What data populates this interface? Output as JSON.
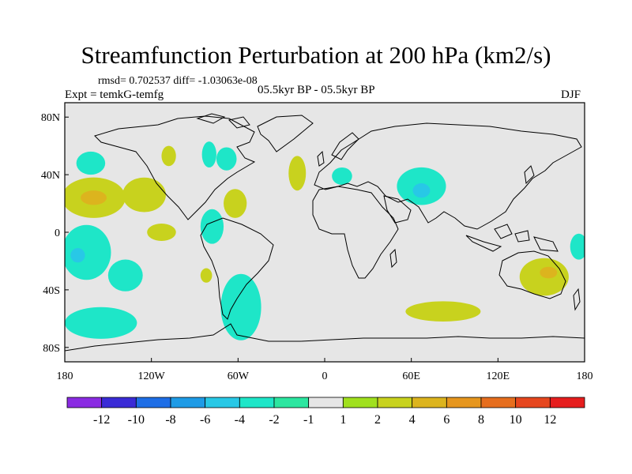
{
  "figure": {
    "title": "Streamfunction Perturbation at 200 hPa (km2/s)",
    "rmsd_line": "rmsd= 0.702537 diff= -1.03063e-08",
    "experiment": "Expt = temkG-temfg",
    "period": "05.5kyr BP - 05.5kyr BP",
    "season": "DJF"
  },
  "map_data": {
    "type": "filled-contour-map",
    "projection": "cylindrical-equidistant",
    "lon_range": [
      -180,
      180
    ],
    "lat_range": [
      -90,
      90
    ],
    "lon_ticks": [
      {
        "value": -180,
        "label": "180"
      },
      {
        "value": -120,
        "label": "120W"
      },
      {
        "value": -60,
        "label": "60W"
      },
      {
        "value": 0,
        "label": "0"
      },
      {
        "value": 60,
        "label": "60E"
      },
      {
        "value": 120,
        "label": "120E"
      },
      {
        "value": 180,
        "label": "180"
      }
    ],
    "lat_ticks": [
      {
        "value": 80,
        "label": "80N"
      },
      {
        "value": 40,
        "label": "40N"
      },
      {
        "value": 0,
        "label": "0"
      },
      {
        "value": -40,
        "label": "40S"
      },
      {
        "value": -80,
        "label": "80S"
      }
    ],
    "background_color": "#e6e6e6",
    "anomalies": [
      {
        "sign": "negative",
        "level": -2,
        "lon": -162,
        "lat": 48,
        "rlon": 10,
        "rlat": 8
      },
      {
        "sign": "positive",
        "level": 2,
        "lon": -160,
        "lat": 24,
        "rlon": 22,
        "rlat": 14
      },
      {
        "sign": "positive",
        "level": 4,
        "lon": -160,
        "lat": 24,
        "rlon": 9,
        "rlat": 5
      },
      {
        "sign": "positive",
        "level": 2,
        "lon": -125,
        "lat": 26,
        "rlon": 15,
        "rlat": 12
      },
      {
        "sign": "negative",
        "level": -2,
        "lon": -165,
        "lat": -14,
        "rlon": 17,
        "rlat": 19
      },
      {
        "sign": "negative",
        "level": -4,
        "lon": -171,
        "lat": -16,
        "rlon": 5,
        "rlat": 5
      },
      {
        "sign": "negative",
        "level": -2,
        "lon": -138,
        "lat": -30,
        "rlon": 12,
        "rlat": 11
      },
      {
        "sign": "negative",
        "level": -2,
        "lon": -155,
        "lat": -63,
        "rlon": 25,
        "rlat": 11
      },
      {
        "sign": "positive",
        "level": 2,
        "lon": -108,
        "lat": 53,
        "rlon": 5,
        "rlat": 7
      },
      {
        "sign": "negative",
        "level": -2,
        "lon": -80,
        "lat": 54,
        "rlon": 5,
        "rlat": 9
      },
      {
        "sign": "negative",
        "level": -2,
        "lon": -68,
        "lat": 51,
        "rlon": 7,
        "rlat": 8
      },
      {
        "sign": "positive",
        "level": 2,
        "lon": -62,
        "lat": 20,
        "rlon": 8,
        "rlat": 10
      },
      {
        "sign": "negative",
        "level": -2,
        "lon": -78,
        "lat": 4,
        "rlon": 8,
        "rlat": 12
      },
      {
        "sign": "positive",
        "level": 2,
        "lon": -113,
        "lat": 0,
        "rlon": 10,
        "rlat": 6
      },
      {
        "sign": "positive",
        "level": 2,
        "lon": -82,
        "lat": -30,
        "rlon": 4,
        "rlat": 5
      },
      {
        "sign": "negative",
        "level": -2,
        "lon": -58,
        "lat": -52,
        "rlon": 14,
        "rlat": 23
      },
      {
        "sign": "positive",
        "level": 2,
        "lon": -19,
        "lat": 41,
        "rlon": 6,
        "rlat": 12
      },
      {
        "sign": "negative",
        "level": -2,
        "lon": 12,
        "lat": 39,
        "rlon": 7,
        "rlat": 6
      },
      {
        "sign": "negative",
        "level": -2,
        "lon": 67,
        "lat": 32,
        "rlon": 17,
        "rlat": 13
      },
      {
        "sign": "negative",
        "level": -4,
        "lon": 67,
        "lat": 29,
        "rlon": 6,
        "rlat": 5
      },
      {
        "sign": "positive",
        "level": 2,
        "lon": 82,
        "lat": -55,
        "rlon": 26,
        "rlat": 7
      },
      {
        "sign": "positive",
        "level": 2,
        "lon": 152,
        "lat": -31,
        "rlon": 17,
        "rlat": 13
      },
      {
        "sign": "positive",
        "level": 4,
        "lon": 155,
        "lat": -28,
        "rlon": 6,
        "rlat": 4
      },
      {
        "sign": "negative",
        "level": -2,
        "lon": 176,
        "lat": -10,
        "rlon": 6,
        "rlat": 9
      }
    ]
  },
  "colorbar": {
    "colors": [
      "#8a2be2",
      "#3a2bd6",
      "#1e6ee6",
      "#1e9be6",
      "#28c8e6",
      "#1ee6c8",
      "#2ce6a0",
      "#e6e6e6",
      "#a0e01e",
      "#c8d21e",
      "#dcb41e",
      "#e6961e",
      "#e66e1e",
      "#e6461e",
      "#e61e1e"
    ],
    "labels": [
      "-12",
      "-10",
      "-8",
      "-6",
      "-4",
      "-2",
      "-1",
      "1",
      "2",
      "4",
      "6",
      "8",
      "10",
      "12"
    ]
  }
}
